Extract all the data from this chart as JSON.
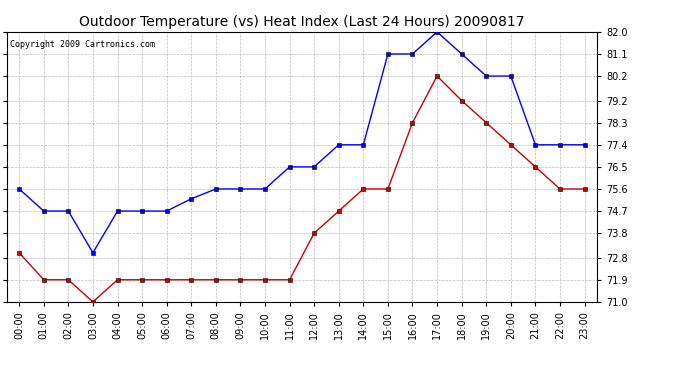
{
  "title": "Outdoor Temperature (vs) Heat Index (Last 24 Hours) 20090817",
  "copyright": "Copyright 2009 Cartronics.com",
  "hours": [
    "00:00",
    "01:00",
    "02:00",
    "03:00",
    "04:00",
    "05:00",
    "06:00",
    "07:00",
    "08:00",
    "09:00",
    "10:00",
    "11:00",
    "12:00",
    "13:00",
    "14:00",
    "15:00",
    "16:00",
    "17:00",
    "18:00",
    "19:00",
    "20:00",
    "21:00",
    "22:00",
    "23:00"
  ],
  "blue_data": [
    75.6,
    74.7,
    74.7,
    73.0,
    74.7,
    74.7,
    74.7,
    75.2,
    75.6,
    75.6,
    75.6,
    76.5,
    76.5,
    77.4,
    77.4,
    81.1,
    81.1,
    82.0,
    81.1,
    80.2,
    80.2,
    77.4,
    77.4,
    77.4
  ],
  "red_data": [
    73.0,
    71.9,
    71.9,
    71.0,
    71.9,
    71.9,
    71.9,
    71.9,
    71.9,
    71.9,
    71.9,
    71.9,
    73.8,
    74.7,
    75.6,
    75.6,
    78.3,
    80.2,
    79.2,
    78.3,
    77.4,
    76.5,
    75.6,
    75.6
  ],
  "ylim": [
    71.0,
    82.0
  ],
  "yticks": [
    71.0,
    71.9,
    72.8,
    73.8,
    74.7,
    75.6,
    76.5,
    77.4,
    78.3,
    79.2,
    80.2,
    81.1,
    82.0
  ],
  "blue_color": "#0000ff",
  "red_color": "#cc0000",
  "bg_color": "#ffffff",
  "grid_color": "#bbbbbb",
  "title_fontsize": 10,
  "copyright_fontsize": 6,
  "tick_fontsize": 7
}
